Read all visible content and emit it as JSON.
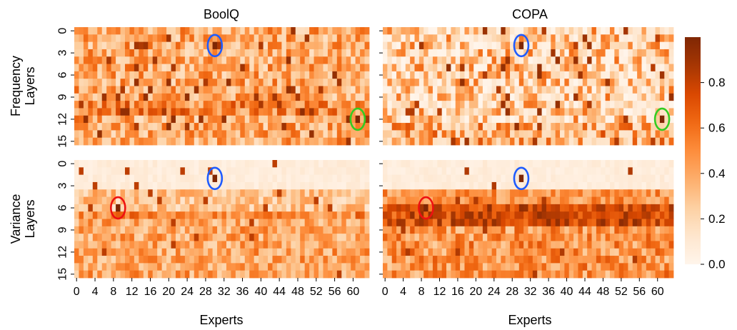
{
  "chart_data": {
    "type": "heatmap",
    "panels": [
      {
        "row": "Frequency",
        "title": "BoolQ"
      },
      {
        "row": "Frequency",
        "title": "COPA"
      },
      {
        "row": "Variance",
        "title": ""
      },
      {
        "row": "Variance",
        "title": ""
      }
    ],
    "row_labels": [
      "Frequency\nLayers",
      "Variance\nLayers"
    ],
    "xlabel": "Experts",
    "x_ticks": [
      "0",
      "4",
      "8",
      "12",
      "16",
      "20",
      "24",
      "28",
      "32",
      "36",
      "40",
      "44",
      "48",
      "52",
      "56",
      "60"
    ],
    "y_ticks": [
      "0",
      "3",
      "6",
      "9",
      "12",
      "15"
    ],
    "experts": 64,
    "layers": 16,
    "colorbar": {
      "min": 0.0,
      "max": 1.0,
      "ticks": [
        "0.0",
        "0.2",
        "0.4",
        "0.6",
        "0.8"
      ],
      "colormap": "Oranges"
    },
    "highlights": [
      {
        "panel": 0,
        "color": "#1f5cff",
        "expert": 30,
        "layer": 2
      },
      {
        "panel": 0,
        "color": "#33cc22",
        "expert": 61,
        "layer": 12
      },
      {
        "panel": 1,
        "color": "#1f5cff",
        "expert": 30,
        "layer": 2
      },
      {
        "panel": 1,
        "color": "#33cc22",
        "expert": 61,
        "layer": 12
      },
      {
        "panel": 2,
        "color": "#1f5cff",
        "expert": 30,
        "layer": 2
      },
      {
        "panel": 2,
        "color": "#ee1111",
        "expert": 9,
        "layer": 6
      },
      {
        "panel": 3,
        "color": "#1f5cff",
        "expert": 30,
        "layer": 2
      },
      {
        "panel": 3,
        "color": "#ee1111",
        "expert": 9,
        "layer": 6
      }
    ]
  }
}
